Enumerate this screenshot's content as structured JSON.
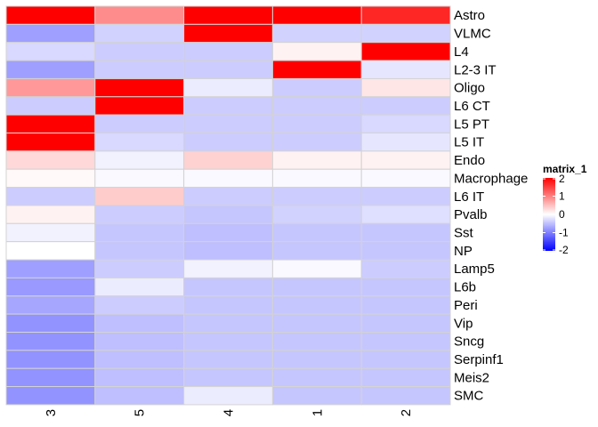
{
  "chart_data": {
    "type": "heatmap",
    "columns": [
      "3",
      "5",
      "4",
      "1",
      "2"
    ],
    "rows": [
      "Astro",
      "VLMC",
      "L4",
      "L2-3 IT",
      "Oligo",
      "L6 CT",
      "L5 PT",
      "L5 IT",
      "Endo",
      "Macrophage",
      "L6 IT",
      "Pvalb",
      "Sst",
      "NP",
      "Lamp5",
      "L6b",
      "Peri",
      "Vip",
      "Sncg",
      "Serpinf1",
      "Meis2",
      "SMC"
    ],
    "values": [
      [
        2.0,
        0.9,
        2.0,
        2.0,
        1.7
      ],
      [
        -0.75,
        -0.35,
        2.0,
        -0.35,
        -0.35
      ],
      [
        -0.3,
        -0.4,
        -0.4,
        0.1,
        2.0
      ],
      [
        -0.75,
        -0.4,
        -0.4,
        2.0,
        -0.2
      ],
      [
        0.8,
        2.0,
        -0.15,
        -0.4,
        0.2
      ],
      [
        -0.4,
        2.0,
        -0.4,
        -0.4,
        -0.4
      ],
      [
        2.0,
        -0.4,
        -0.4,
        -0.4,
        -0.3
      ],
      [
        2.0,
        -0.3,
        -0.4,
        -0.4,
        -0.2
      ],
      [
        0.3,
        -0.1,
        0.35,
        0.1,
        0.1
      ],
      [
        0.05,
        -0.05,
        -0.05,
        -0.05,
        -0.05
      ],
      [
        -0.4,
        0.4,
        -0.4,
        -0.4,
        -0.4
      ],
      [
        0.1,
        -0.4,
        -0.45,
        -0.35,
        -0.25
      ],
      [
        -0.1,
        -0.45,
        -0.5,
        -0.45,
        -0.45
      ],
      [
        0.0,
        -0.45,
        -0.5,
        -0.45,
        -0.45
      ],
      [
        -0.75,
        -0.4,
        -0.1,
        -0.05,
        -0.4
      ],
      [
        -0.8,
        -0.15,
        -0.45,
        -0.45,
        -0.45
      ],
      [
        -0.7,
        -0.4,
        -0.45,
        -0.45,
        -0.45
      ],
      [
        -0.85,
        -0.5,
        -0.45,
        -0.45,
        -0.45
      ],
      [
        -0.85,
        -0.5,
        -0.45,
        -0.45,
        -0.45
      ],
      [
        -0.85,
        -0.5,
        -0.45,
        -0.45,
        -0.45
      ],
      [
        -0.85,
        -0.5,
        -0.45,
        -0.45,
        -0.45
      ],
      [
        -0.85,
        -0.5,
        -0.15,
        -0.45,
        -0.45
      ]
    ],
    "color_scale": {
      "low": "#0000ff",
      "mid": "#ffffff",
      "high": "#ff0000",
      "min": -2,
      "max": 2
    },
    "legend": {
      "title": "matrix_1",
      "ticks": [
        "2",
        "1",
        "0",
        "-1",
        "-2"
      ],
      "placement": "right"
    },
    "grid_color": "#d3d3d3"
  }
}
